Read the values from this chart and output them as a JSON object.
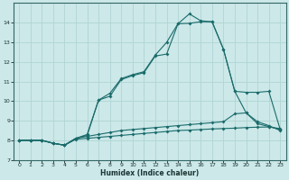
{
  "xlabel": "Humidex (Indice chaleur)",
  "bg_color": "#cce8e8",
  "grid_color": "#b0d4d4",
  "line_color": "#1a6b6b",
  "xlim": [
    -0.5,
    23.5
  ],
  "ylim": [
    7.0,
    15.0
  ],
  "xticks": [
    0,
    1,
    2,
    3,
    4,
    5,
    6,
    7,
    8,
    9,
    10,
    11,
    12,
    13,
    14,
    15,
    16,
    17,
    18,
    19,
    20,
    21,
    22,
    23
  ],
  "yticks": [
    7,
    8,
    9,
    10,
    11,
    12,
    13,
    14
  ],
  "line1_x": [
    0,
    1,
    2,
    3,
    4,
    5,
    6,
    7,
    8,
    9,
    10,
    11,
    12,
    13,
    14,
    15,
    16,
    17,
    18,
    19,
    20,
    21,
    22,
    23
  ],
  "line1_y": [
    8.0,
    8.0,
    8.0,
    7.85,
    7.75,
    8.05,
    8.1,
    8.15,
    8.2,
    8.25,
    8.3,
    8.35,
    8.4,
    8.45,
    8.5,
    8.52,
    8.55,
    8.58,
    8.6,
    8.62,
    8.65,
    8.67,
    8.68,
    8.6
  ],
  "line2_x": [
    0,
    1,
    2,
    3,
    4,
    5,
    6,
    7,
    8,
    9,
    10,
    11,
    12,
    13,
    14,
    15,
    16,
    17,
    18,
    19,
    20,
    21,
    22,
    23
  ],
  "line2_y": [
    8.0,
    8.0,
    8.0,
    7.85,
    7.75,
    8.1,
    8.2,
    8.3,
    8.4,
    8.5,
    8.55,
    8.6,
    8.65,
    8.7,
    8.75,
    8.8,
    8.85,
    8.9,
    8.95,
    9.35,
    9.4,
    8.85,
    8.7,
    8.55
  ],
  "line3_x": [
    0,
    1,
    2,
    3,
    4,
    5,
    6,
    7,
    8,
    9,
    10,
    11,
    12,
    13,
    14,
    15,
    16,
    17,
    18,
    19,
    20,
    21,
    22,
    23
  ],
  "line3_y": [
    8.0,
    8.0,
    8.0,
    7.85,
    7.75,
    8.1,
    8.25,
    10.05,
    10.25,
    11.1,
    11.3,
    11.45,
    12.3,
    12.4,
    13.95,
    13.97,
    14.05,
    14.05,
    12.65,
    10.5,
    10.45,
    10.45,
    10.5,
    8.55
  ],
  "line4_x": [
    0,
    1,
    2,
    3,
    4,
    5,
    6,
    7,
    8,
    9,
    10,
    11,
    12,
    13,
    14,
    15,
    16,
    17,
    18,
    19,
    20,
    21,
    22,
    23
  ],
  "line4_y": [
    8.0,
    8.0,
    8.0,
    7.85,
    7.75,
    8.1,
    8.3,
    10.05,
    10.4,
    11.15,
    11.35,
    11.5,
    12.35,
    13.0,
    13.95,
    14.45,
    14.1,
    14.05,
    12.65,
    10.5,
    9.4,
    8.95,
    8.75,
    8.5
  ]
}
